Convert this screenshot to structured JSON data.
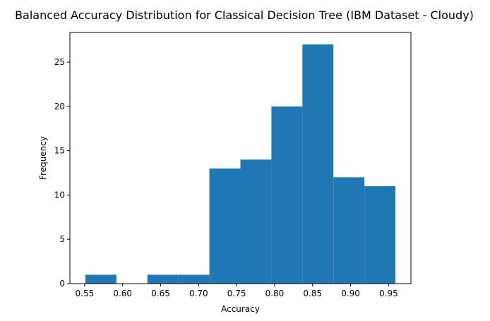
{
  "chart_data": {
    "type": "bar",
    "title": "Balanced Accuracy Distribution for Classical Decision Tree (IBM Dataset - Cloudy)",
    "xlabel": "Accuracy",
    "ylabel": "Frequency",
    "bin_edges": [
      0.551,
      0.5918,
      0.6326,
      0.6734,
      0.7142,
      0.755,
      0.7958,
      0.8366,
      0.8774,
      0.9182,
      0.959
    ],
    "values": [
      1,
      0,
      1,
      1,
      13,
      14,
      20,
      27,
      12,
      11
    ],
    "xlim": [
      0.5306,
      0.9794
    ],
    "ylim": [
      0,
      28.35
    ],
    "xticks": [
      0.55,
      0.6,
      0.65,
      0.7,
      0.75,
      0.8,
      0.85,
      0.9,
      0.95
    ],
    "xtick_labels": [
      "0.55",
      "0.60",
      "0.65",
      "0.70",
      "0.75",
      "0.80",
      "0.85",
      "0.90",
      "0.95"
    ],
    "yticks": [
      0,
      5,
      10,
      15,
      20,
      25
    ],
    "ytick_labels": [
      "0",
      "5",
      "10",
      "15",
      "20",
      "25"
    ],
    "bar_color": "#1f77b4",
    "grid": false,
    "legend": false
  }
}
